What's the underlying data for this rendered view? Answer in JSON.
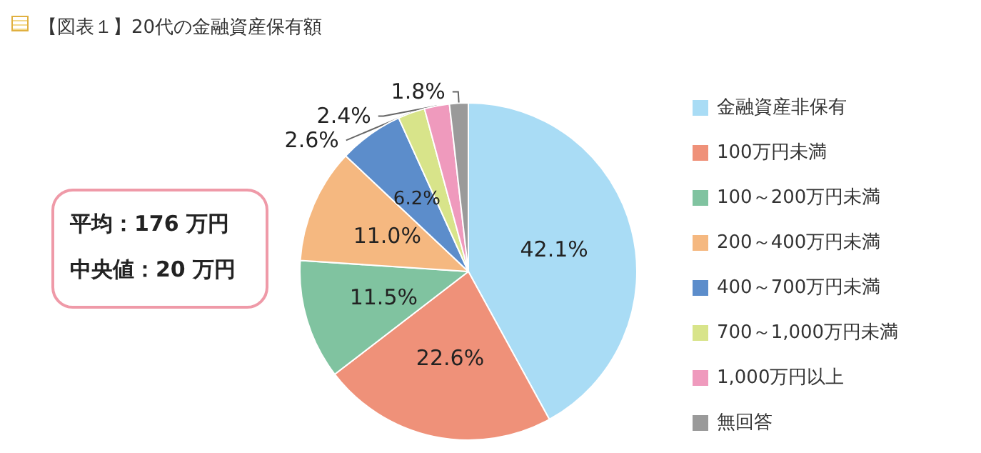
{
  "chart_data": {
    "type": "pie",
    "title": "【図表１】20代の金融資産保有額",
    "categories": [
      "金融資産非保有",
      "100万円未満",
      "100～200万円未満",
      "200～400万円未満",
      "400～700万円未満",
      "700～1,000万円未満",
      "1,000万円以上",
      "無回答"
    ],
    "values": [
      42.1,
      22.6,
      11.5,
      11.0,
      6.2,
      2.6,
      2.4,
      1.8
    ],
    "colors": [
      "#a9dcf5",
      "#ef9179",
      "#80c3a0",
      "#f5b880",
      "#5c8dcb",
      "#d8e48a",
      "#ef9abd",
      "#9a9a9a"
    ],
    "value_labels": [
      "42.1%",
      "22.6%",
      "11.5%",
      "11.0%",
      "6.2%",
      "2.6%",
      "2.4%",
      "1.8%"
    ],
    "legend": "right",
    "annotations": [
      "平均：176 万円",
      "中央値：20 万円"
    ]
  }
}
